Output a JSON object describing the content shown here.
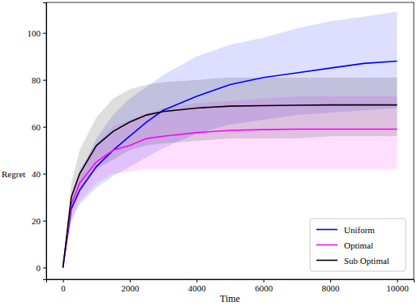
{
  "chart_data": {
    "type": "line",
    "x_label": "Time",
    "y_label": "Regret",
    "x": [
      0,
      250,
      500,
      1000,
      1500,
      2000,
      2500,
      3000,
      4000,
      5000,
      6000,
      7000,
      8000,
      9000,
      10000
    ],
    "xlim": [
      -500,
      10500
    ],
    "xticks": [
      0,
      2000,
      4000,
      6000,
      8000,
      10000
    ],
    "ylim": [
      -5,
      113
    ],
    "yticks": [
      0,
      20,
      40,
      60,
      80,
      100
    ],
    "legend": "lower right",
    "series": [
      {
        "name": "Uniform",
        "color": "#0000ff",
        "values": [
          0,
          25,
          33,
          43,
          50,
          56,
          62,
          67,
          73,
          78,
          81,
          83,
          85,
          87,
          88
        ],
        "lower": [
          0,
          20,
          27,
          34,
          39,
          43,
          47,
          51,
          57,
          61,
          63,
          65,
          66,
          67,
          68
        ],
        "upper": [
          0,
          30,
          40,
          55,
          65,
          72,
          77,
          82,
          90,
          95,
          98,
          102,
          105,
          107,
          109
        ]
      },
      {
        "name": "Optimal",
        "color": "#ff00ff",
        "values": [
          0,
          27,
          36,
          45,
          50,
          52,
          55,
          56,
          57.5,
          58.5,
          58.8,
          59,
          59,
          59,
          59
        ],
        "lower": [
          0,
          20,
          28,
          36,
          40,
          41,
          42,
          42,
          42,
          42,
          42,
          42,
          42,
          42,
          42
        ],
        "upper": [
          0,
          32,
          42,
          53,
          60,
          63,
          66,
          68,
          70,
          71,
          72,
          73,
          73,
          73,
          73
        ]
      },
      {
        "name": "Sub Optimal",
        "color": "#000000",
        "values": [
          0,
          30,
          40,
          52,
          58,
          62,
          65,
          66.5,
          68,
          68.8,
          69,
          69.2,
          69.3,
          69.3,
          69.3
        ],
        "lower": [
          0,
          24,
          32,
          42,
          46,
          50,
          52,
          53,
          54,
          55,
          55,
          55,
          56,
          56,
          56
        ],
        "upper": [
          0,
          36,
          50,
          64,
          72,
          76,
          78,
          79,
          80,
          81,
          81,
          81,
          81,
          81,
          81
        ]
      }
    ]
  }
}
